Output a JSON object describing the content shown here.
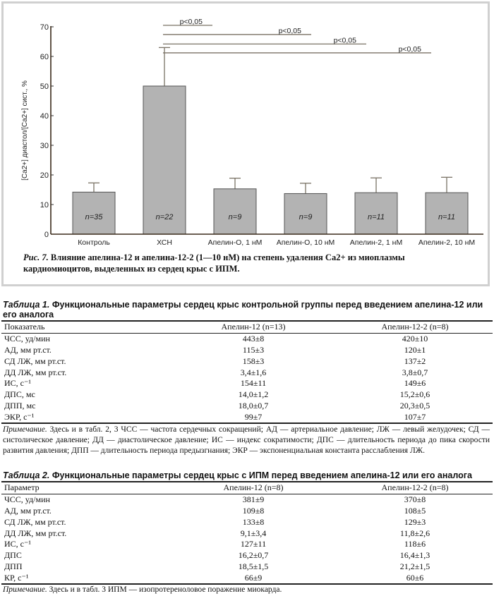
{
  "chart_data": {
    "type": "bar",
    "ylabel": "[Ca2+] диастол/[Ca2+] сист., %",
    "ylim": [
      0,
      70
    ],
    "yticks": [
      0,
      10,
      20,
      30,
      40,
      50,
      60,
      70
    ],
    "categories": [
      "Контроль",
      "ХСН",
      "Апелин-О, 1 нМ",
      "Апелин-О, 10 нМ",
      "Апелин-2, 1 нМ",
      "Апелин-2, 10 нМ"
    ],
    "values": [
      14.2,
      50,
      15.3,
      13.7,
      14,
      14
    ],
    "error_upper": [
      17.3,
      63,
      18.9,
      17.2,
      19,
      19.2
    ],
    "n_labels": [
      "n=35",
      "n=22",
      "n=9",
      "n=9",
      "n=11",
      "n=11"
    ],
    "significance": [
      {
        "from": 1,
        "to": 2,
        "label": "p<0,05"
      },
      {
        "from": 1,
        "to": 3,
        "label": "p<0,05"
      },
      {
        "from": 1,
        "to": 4,
        "label": "p<0,05"
      },
      {
        "from": 1,
        "to": 5,
        "label": "p<0,05"
      }
    ],
    "bar_color": "#b3b3b3",
    "line_color": "#7a7265"
  },
  "figure": {
    "caption_label": "Рис. 7.",
    "caption_text": " Влияние апелина-12 и апелина-12-2 (1—10 нМ) на степень удаления Ca2+ из миоплазмы кардиомиоцитов, выделенных из сердец крыс с ИПМ."
  },
  "table1": {
    "label": "Таблица 1.",
    "title": " Функциональные параметры сердец крыс контрольной группы перед введением апелина-12 или его аналога",
    "headers": [
      "Показатель",
      "Апелин-12 (n=13)",
      "Апелин-12-2 (n=8)"
    ],
    "rows": [
      [
        "ЧСС, уд/мин",
        "443±8",
        "420±10"
      ],
      [
        "АД, мм рт.ст.",
        "115±3",
        "120±1"
      ],
      [
        "СД ЛЖ, мм рт.ст.",
        "158±3",
        "137±2"
      ],
      [
        "ДД ЛЖ, мм рт.ст.",
        "3,4±1,6",
        "3,8±0,7"
      ],
      [
        "ИС, с⁻¹",
        "154±11",
        "149±6"
      ],
      [
        "ДПС, мс",
        "14,0±1,2",
        "15,2±0,6"
      ],
      [
        "ДПП, мс",
        "18,0±0,7",
        "20,3±0,5"
      ],
      [
        "ЭКР, с⁻¹",
        "99±7",
        "107±7"
      ]
    ],
    "note_label": "Примечание.",
    "note_text": "  Здесь и в табл. 2, 3 ЧСС — частота сердечных сокращений; АД — артериальное давление; ЛЖ — левый желудочек; СД — систолическое давление; ДД — диастолическое давление; ИС — индекс сократимости; ДПС — длительность периода до пика скорости развития давления; ДПП — длительность периода предызгнания; ЭКР — экспоненциальная константа расслабления ЛЖ."
  },
  "table2": {
    "label": "Таблица 2.",
    "title": " Функциональные параметры сердец крыс с ИПМ перед введением апелина-12 или его аналога",
    "headers": [
      "Параметр",
      "Апелин-12 (n=8)",
      "Апелин-12-2 (n=8)"
    ],
    "rows": [
      [
        "ЧСС, уд/мин",
        "381±9",
        "370±8"
      ],
      [
        "АД, мм рт.ст.",
        "109±8",
        "108±5"
      ],
      [
        "СД ЛЖ, мм рт.ст.",
        "133±8",
        "129±3"
      ],
      [
        "ДД ЛЖ, мм рт.ст.",
        "9,1±3,4",
        "11,8±2,6"
      ],
      [
        "ИС, с⁻¹",
        "127±11",
        "118±6"
      ],
      [
        "ДПС",
        "16,2±0,7",
        "16,4±1,3"
      ],
      [
        "ДПП",
        "18,5±1,5",
        "21,2±1,5"
      ],
      [
        "КР, с⁻¹",
        "66±9",
        "60±6"
      ]
    ],
    "note_label": "Примечание.",
    "note_text": " Здесь и в табл. 3 ИПМ — изопротереноловое поражение миокарда."
  }
}
